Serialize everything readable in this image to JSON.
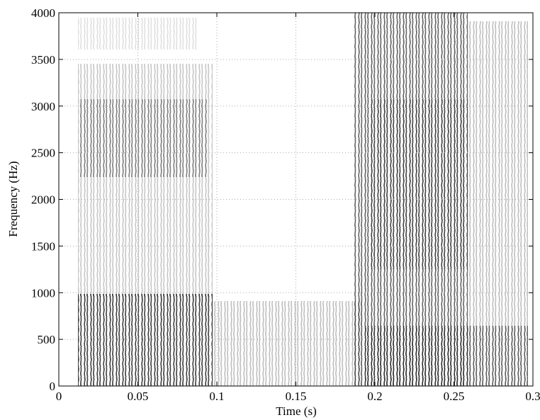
{
  "chart_data": {
    "type": "spectrogram",
    "xlabel": "Time (s)",
    "ylabel": "Frequency (Hz)",
    "xlim": [
      0,
      0.3
    ],
    "xticks": [
      0,
      0.05,
      0.1,
      0.15,
      0.2,
      0.25,
      0.3
    ],
    "ylim": [
      0,
      4000
    ],
    "yticks": [
      0,
      500,
      1000,
      1500,
      2000,
      2500,
      3000,
      3500,
      4000
    ],
    "grid": true,
    "color": "#333333"
  }
}
